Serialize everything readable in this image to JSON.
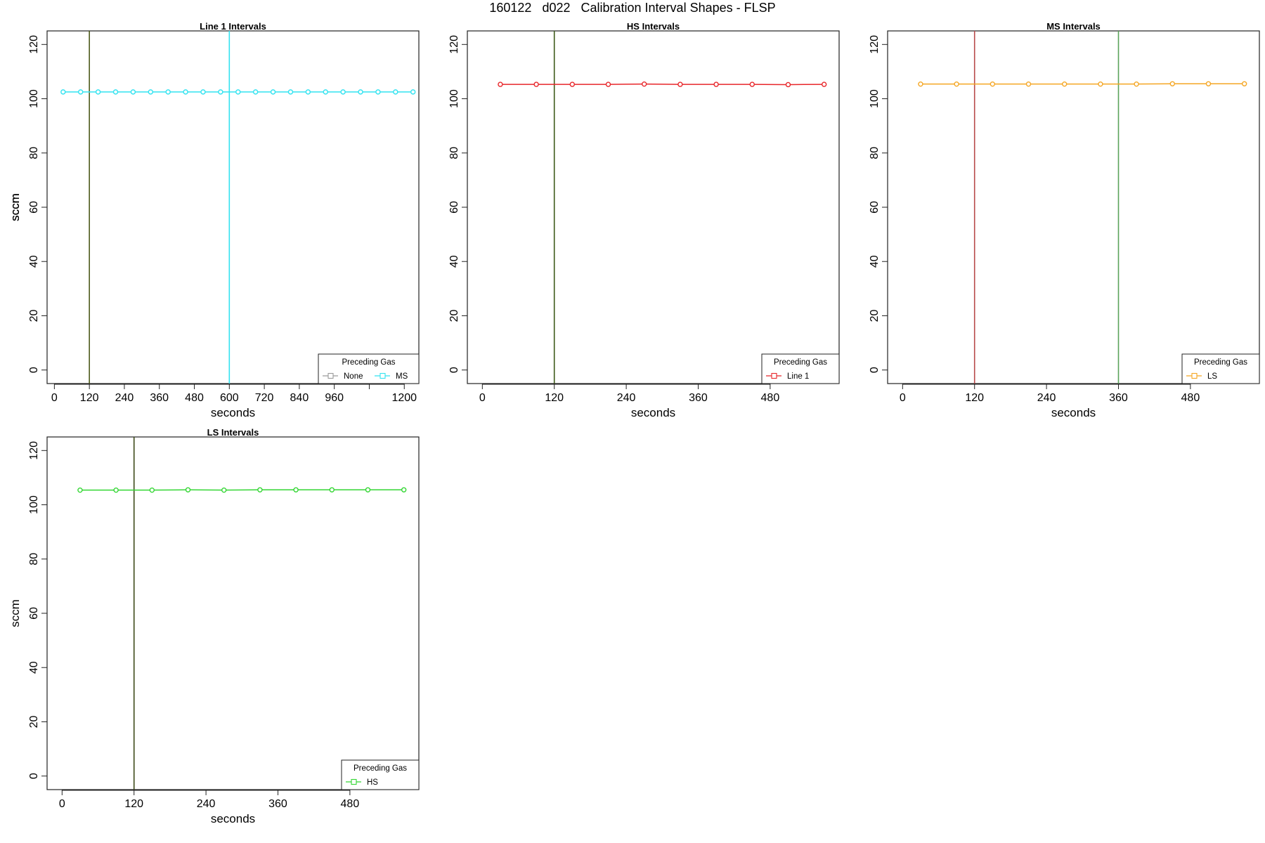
{
  "figure_title": "160122   d022   Calibration Interval Shapes - FLSP",
  "chart_data": [
    {
      "type": "line",
      "title": "Line 1 Intervals",
      "xlabel": "seconds",
      "ylabel": "sccm",
      "xlim": [
        -25,
        1250
      ],
      "ylim": [
        -5,
        125
      ],
      "xticks": [
        0,
        120,
        240,
        360,
        480,
        600,
        720,
        840,
        960,
        1080,
        1200
      ],
      "xtick_labels": [
        "0",
        "120",
        "240",
        "360",
        "480",
        "600",
        "720",
        "840",
        "960",
        "",
        "1200"
      ],
      "yticks": [
        0,
        20,
        40,
        60,
        80,
        100,
        120
      ],
      "vlines": [
        {
          "x": 120,
          "color": "#4d5a1a"
        },
        {
          "x": 600,
          "color": "#33e3f0"
        }
      ],
      "legend": {
        "title": "Preceding Gas",
        "position": "bottom-right",
        "entries": [
          {
            "name": "None",
            "color": "#9a9a9a"
          },
          {
            "name": "MS",
            "color": "#33e3f0"
          }
        ]
      },
      "series": [
        {
          "name": "MS",
          "color": "#33e3f0",
          "x": [
            30,
            90,
            150,
            210,
            270,
            330,
            390,
            450,
            510,
            570,
            630,
            690,
            750,
            810,
            870,
            930,
            990,
            1050,
            1110,
            1170,
            1230
          ],
          "y": [
            102.5,
            102.5,
            102.5,
            102.5,
            102.5,
            102.5,
            102.5,
            102.5,
            102.5,
            102.5,
            102.5,
            102.5,
            102.5,
            102.5,
            102.5,
            102.5,
            102.5,
            102.5,
            102.5,
            102.5,
            102.5
          ]
        }
      ]
    },
    {
      "type": "line",
      "title": "HS Intervals",
      "xlabel": "seconds",
      "ylabel": "sccm",
      "xlim": [
        -25,
        595
      ],
      "ylim": [
        -5,
        125
      ],
      "xticks": [
        0,
        120,
        240,
        360,
        480
      ],
      "xtick_labels": [
        "0",
        "120",
        "240",
        "360",
        "480"
      ],
      "yticks": [
        0,
        20,
        40,
        60,
        80,
        100,
        120
      ],
      "vlines": [
        {
          "x": 120,
          "color": "#3e5a1a"
        }
      ],
      "legend": {
        "title": "Preceding Gas",
        "position": "bottom-right",
        "entries": [
          {
            "name": "Line 1",
            "color": "#e8262a"
          }
        ]
      },
      "series": [
        {
          "name": "Line 1",
          "color": "#e8262a",
          "x": [
            30,
            90,
            150,
            210,
            270,
            330,
            390,
            450,
            510,
            570
          ],
          "y": [
            105.3,
            105.3,
            105.3,
            105.3,
            105.4,
            105.3,
            105.3,
            105.3,
            105.2,
            105.3
          ]
        }
      ]
    },
    {
      "type": "line",
      "title": "MS Intervals",
      "xlabel": "seconds",
      "ylabel": "sccm",
      "xlim": [
        -25,
        595
      ],
      "ylim": [
        -5,
        125
      ],
      "xticks": [
        0,
        120,
        240,
        360,
        480
      ],
      "xtick_labels": [
        "0",
        "120",
        "240",
        "360",
        "480"
      ],
      "yticks": [
        0,
        20,
        40,
        60,
        80,
        100,
        120
      ],
      "vlines": [
        {
          "x": 120,
          "color": "#b84a4a"
        },
        {
          "x": 360,
          "color": "#5aa35a"
        }
      ],
      "legend": {
        "title": "Preceding Gas",
        "position": "bottom-right",
        "entries": [
          {
            "name": "LS",
            "color": "#f5a623"
          }
        ]
      },
      "series": [
        {
          "name": "LS",
          "color": "#f5a623",
          "x": [
            30,
            90,
            150,
            210,
            270,
            330,
            390,
            450,
            510,
            570
          ],
          "y": [
            105.4,
            105.4,
            105.4,
            105.4,
            105.4,
            105.4,
            105.4,
            105.5,
            105.5,
            105.5
          ]
        }
      ]
    },
    {
      "type": "line",
      "title": "LS Intervals",
      "xlabel": "seconds",
      "ylabel": "sccm",
      "xlim": [
        -25,
        595
      ],
      "ylim": [
        -5,
        125
      ],
      "xticks": [
        0,
        120,
        240,
        360,
        480
      ],
      "xtick_labels": [
        "0",
        "120",
        "240",
        "360",
        "480"
      ],
      "yticks": [
        0,
        20,
        40,
        60,
        80,
        100,
        120
      ],
      "vlines": [
        {
          "x": 120,
          "color": "#3e4a1a"
        }
      ],
      "legend": {
        "title": "Preceding Gas",
        "position": "bottom-right",
        "entries": [
          {
            "name": "HS",
            "color": "#33d633"
          }
        ]
      },
      "series": [
        {
          "name": "HS",
          "color": "#33d633",
          "x": [
            30,
            90,
            150,
            210,
            270,
            330,
            390,
            450,
            510,
            570
          ],
          "y": [
            105.4,
            105.4,
            105.4,
            105.5,
            105.4,
            105.5,
            105.5,
            105.5,
            105.5,
            105.5
          ]
        }
      ]
    }
  ]
}
